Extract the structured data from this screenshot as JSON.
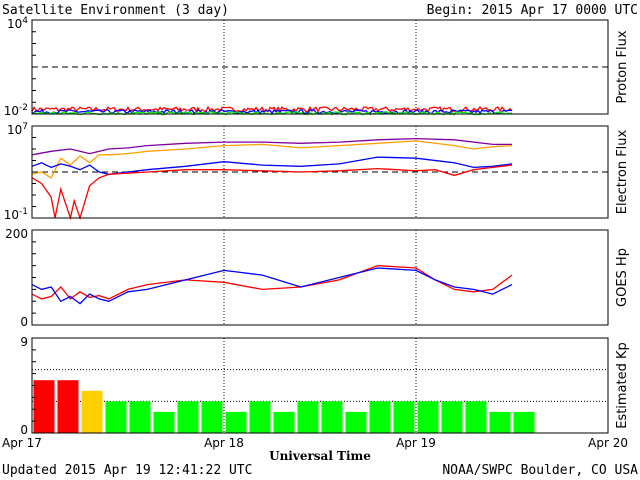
{
  "header": {
    "title": "Satellite Environment (3 day)",
    "begin": "Begin:  2015 Apr 17 0000 UTC"
  },
  "footer": {
    "updated": "Updated 2015 Apr 19 12:41:22 UTC",
    "credit": "NOAA/SWPC Boulder, CO USA",
    "xlabel": "Universal Time"
  },
  "x_ticks": [
    "Apr 17",
    "Apr 18",
    "Apr 19",
    "Apr 20"
  ],
  "chart_data": [
    {
      "type": "line",
      "ylabel": "Proton Flux",
      "yscale": "log",
      "ylim_exp": [
        -2,
        4
      ],
      "ytick_labels": [
        {
          "base": "10",
          "exp": "4"
        },
        {
          "base": "10",
          "exp": "-2"
        }
      ],
      "threshold_exp": 1,
      "x_days": [
        0,
        2.5
      ],
      "series": [
        {
          "color": "#ff0000",
          "level_exp": -1.7,
          "noise": 0.15
        },
        {
          "color": "#0000ff",
          "level_exp": -1.85,
          "noise": 0.12
        },
        {
          "color": "#00ee00",
          "level_exp": -1.95,
          "noise": 0.1
        }
      ]
    },
    {
      "type": "line",
      "ylabel": "Electron Flux",
      "yscale": "log",
      "ylim_exp": [
        -1,
        7
      ],
      "ytick_labels": [
        {
          "base": "10",
          "exp": "7"
        },
        {
          "base": "10",
          "exp": "-1"
        }
      ],
      "threshold_exp": 3,
      "series": [
        {
          "color": "#8000a0",
          "x": [
            0,
            0.1,
            0.2,
            0.3,
            0.4,
            0.5,
            0.6,
            0.8,
            1.0,
            1.2,
            1.4,
            1.6,
            1.8,
            2.0,
            2.2,
            2.4,
            2.5
          ],
          "y": [
            4.5,
            4.8,
            5.0,
            4.6,
            5.0,
            5.1,
            5.3,
            5.5,
            5.6,
            5.6,
            5.5,
            5.6,
            5.8,
            5.9,
            5.8,
            5.4,
            5.4
          ]
        },
        {
          "color": "#ffa000",
          "x": [
            0,
            0.05,
            0.1,
            0.15,
            0.2,
            0.25,
            0.3,
            0.35,
            0.4,
            0.5,
            0.6,
            0.8,
            1.0,
            1.2,
            1.4,
            1.6,
            1.8,
            2.0,
            2.2,
            2.3,
            2.4,
            2.5
          ],
          "y": [
            2.8,
            3.0,
            2.5,
            4.2,
            3.6,
            4.4,
            3.8,
            4.5,
            4.5,
            4.6,
            4.8,
            5.0,
            5.3,
            5.4,
            5.1,
            5.3,
            5.5,
            5.7,
            5.3,
            5.0,
            5.2,
            5.3
          ]
        },
        {
          "color": "#0000ff",
          "x": [
            0,
            0.05,
            0.1,
            0.15,
            0.2,
            0.25,
            0.3,
            0.35,
            0.4,
            0.6,
            0.8,
            1.0,
            1.2,
            1.4,
            1.6,
            1.8,
            2.0,
            2.2,
            2.3,
            2.4,
            2.5
          ],
          "y": [
            3.5,
            3.8,
            3.4,
            3.7,
            3.5,
            3.2,
            3.6,
            3.0,
            2.8,
            3.2,
            3.5,
            3.9,
            3.6,
            3.5,
            3.7,
            4.3,
            4.2,
            3.8,
            3.4,
            3.5,
            3.7
          ]
        },
        {
          "color": "#ff0000",
          "x": [
            0,
            0.05,
            0.1,
            0.12,
            0.15,
            0.2,
            0.22,
            0.25,
            0.3,
            0.35,
            0.4,
            0.6,
            0.8,
            1.0,
            1.2,
            1.4,
            1.6,
            1.8,
            2.0,
            2.1,
            2.2,
            2.3,
            2.4,
            2.5
          ],
          "y": [
            2.5,
            2.0,
            0.8,
            -1.0,
            1.5,
            -1.0,
            0.5,
            -1.0,
            1.8,
            2.5,
            2.8,
            3.0,
            3.2,
            3.2,
            3.1,
            3.0,
            3.1,
            3.3,
            3.1,
            3.2,
            2.7,
            3.2,
            3.4,
            3.6
          ]
        }
      ]
    },
    {
      "type": "line",
      "ylabel": "GOES Hp",
      "ylim": [
        0,
        200
      ],
      "ytick_labels": [
        "200",
        "0"
      ],
      "series": [
        {
          "color": "#ff0000",
          "x": [
            0,
            0.05,
            0.1,
            0.15,
            0.2,
            0.25,
            0.3,
            0.35,
            0.4,
            0.5,
            0.6,
            0.8,
            1.0,
            1.2,
            1.4,
            1.6,
            1.8,
            2.0,
            2.1,
            2.2,
            2.3,
            2.4,
            2.5
          ],
          "y": [
            65,
            55,
            60,
            80,
            55,
            70,
            58,
            62,
            55,
            75,
            85,
            95,
            90,
            75,
            80,
            95,
            125,
            120,
            95,
            75,
            70,
            75,
            105
          ]
        },
        {
          "color": "#0000ff",
          "x": [
            0,
            0.05,
            0.1,
            0.15,
            0.2,
            0.25,
            0.3,
            0.35,
            0.4,
            0.5,
            0.6,
            0.8,
            1.0,
            1.2,
            1.4,
            1.6,
            1.8,
            2.0,
            2.1,
            2.2,
            2.3,
            2.4,
            2.5
          ],
          "y": [
            85,
            75,
            80,
            50,
            60,
            45,
            65,
            55,
            50,
            70,
            75,
            95,
            115,
            105,
            80,
            100,
            120,
            115,
            95,
            80,
            75,
            65,
            85
          ]
        }
      ]
    },
    {
      "type": "bar",
      "ylabel": "Estimated Kp",
      "ylim": [
        0,
        9
      ],
      "ytick_labels": [
        "9",
        "0"
      ],
      "bar_width_hours": 3,
      "values": [
        5,
        5,
        4,
        3,
        3,
        2,
        3,
        3,
        2,
        3,
        2,
        3,
        3,
        2,
        3,
        3,
        3,
        3,
        3,
        2,
        2
      ],
      "colors": [
        "#ff0000",
        "#ff0000",
        "#ffd000",
        "#00ff00",
        "#00ff00",
        "#00ff00",
        "#00ff00",
        "#00ff00",
        "#00ff00",
        "#00ff00",
        "#00ff00",
        "#00ff00",
        "#00ff00",
        "#00ff00",
        "#00ff00",
        "#00ff00",
        "#00ff00",
        "#00ff00",
        "#00ff00",
        "#00ff00",
        "#00ff00"
      ]
    }
  ]
}
